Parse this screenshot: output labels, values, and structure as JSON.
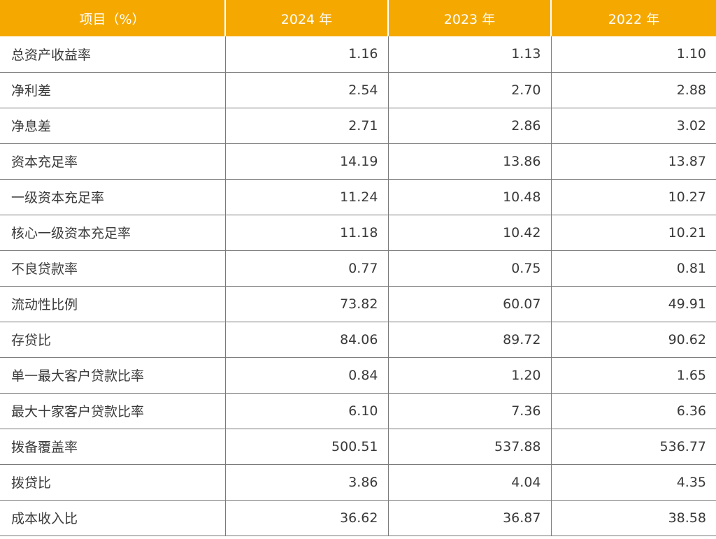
{
  "header": {
    "item": "项目（%）",
    "y2024": "2024 年",
    "y2023": "2023 年",
    "y2022": "2022 年"
  },
  "rows": [
    {
      "label": "总资产收益率",
      "v2024": "1.16",
      "v2023": "1.13",
      "v2022": "1.10"
    },
    {
      "label": "净利差",
      "v2024": "2.54",
      "v2023": "2.70",
      "v2022": "2.88"
    },
    {
      "label": "净息差",
      "v2024": "2.71",
      "v2023": "2.86",
      "v2022": "3.02"
    },
    {
      "label": "资本充足率",
      "v2024": "14.19",
      "v2023": "13.86",
      "v2022": "13.87"
    },
    {
      "label": "一级资本充足率",
      "v2024": "11.24",
      "v2023": "10.48",
      "v2022": "10.27"
    },
    {
      "label": "核心一级资本充足率",
      "v2024": "11.18",
      "v2023": "10.42",
      "v2022": "10.21"
    },
    {
      "label": "不良贷款率",
      "v2024": "0.77",
      "v2023": "0.75",
      "v2022": "0.81"
    },
    {
      "label": "流动性比例",
      "v2024": "73.82",
      "v2023": "60.07",
      "v2022": "49.91"
    },
    {
      "label": "存贷比",
      "v2024": "84.06",
      "v2023": "89.72",
      "v2022": "90.62"
    },
    {
      "label": "单一最大客户贷款比率",
      "v2024": "0.84",
      "v2023": "1.20",
      "v2022": "1.65"
    },
    {
      "label": "最大十家客户贷款比率",
      "v2024": "6.10",
      "v2023": "7.36",
      "v2022": "6.36"
    },
    {
      "label": "拨备覆盖率",
      "v2024": "500.51",
      "v2023": "537.88",
      "v2022": "536.77"
    },
    {
      "label": "拨贷比",
      "v2024": "3.86",
      "v2023": "4.04",
      "v2022": "4.35"
    },
    {
      "label": "成本收入比",
      "v2024": "36.62",
      "v2023": "36.87",
      "v2022": "38.58"
    }
  ],
  "colors": {
    "header_bg": "#f5a800",
    "header_text": "#ffffff",
    "cell_text": "#3a3a3a",
    "grid_line": "#7a7a7a"
  }
}
